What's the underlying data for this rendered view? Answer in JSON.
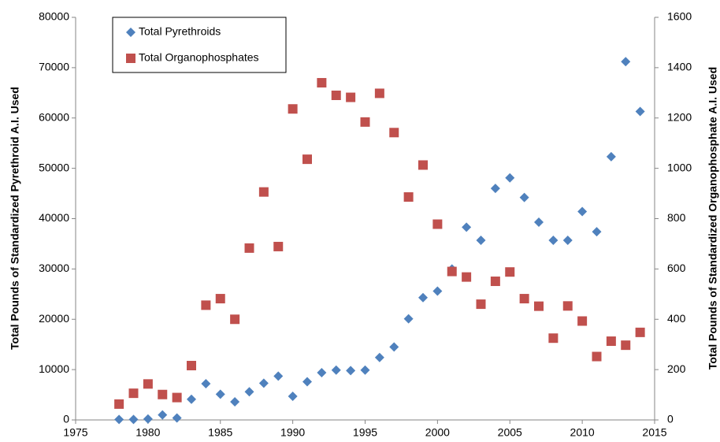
{
  "chart_data": {
    "type": "scatter",
    "y_axis_label": "Total Pounds of Standardized Pyrethroid A.I. Used",
    "y2_axis_label": "Total Pounds of Standardized Organophosphate A.I. Used",
    "x": [
      1978,
      1979,
      1980,
      1981,
      1982,
      1983,
      1984,
      1985,
      1986,
      1987,
      1988,
      1989,
      1990,
      1991,
      1992,
      1993,
      1994,
      1995,
      1996,
      1997,
      1998,
      1999,
      2000,
      2001,
      2002,
      2003,
      2004,
      2005,
      2006,
      2007,
      2008,
      2009,
      2010,
      2011,
      2012,
      2013,
      2014
    ],
    "series": [
      {
        "name": "Total Pyrethroids",
        "color": "#4f81bd",
        "marker": "diamond",
        "values": [
          100,
          100,
          200,
          1000,
          400,
          4100,
          7200,
          5100,
          3600,
          5600,
          7300,
          8700,
          4700,
          7600,
          9400,
          9900,
          9800,
          9900,
          12400,
          14500,
          20100,
          24300,
          25600,
          30000,
          38300,
          35700,
          46000,
          48100,
          44200,
          39300,
          35700,
          35700,
          41400,
          37400,
          52300,
          71200,
          61300
        ]
      },
      {
        "name": "Total Organophosphates",
        "color": "#c0504d",
        "marker": "square",
        "axis": "y2",
        "values": [
          63,
          106,
          143,
          101,
          89,
          216,
          456,
          482,
          400,
          683,
          906,
          689,
          1236,
          1036,
          1340,
          1290,
          1282,
          1184,
          1298,
          1142,
          886,
          1013,
          778,
          590,
          568,
          460,
          551,
          588,
          482,
          452,
          325,
          453,
          393,
          252,
          313,
          297,
          348
        ]
      }
    ],
    "xlim": [
      1975,
      2015
    ],
    "xticks": [
      1975,
      1980,
      1985,
      1990,
      1995,
      2000,
      2005,
      2010,
      2015
    ],
    "ylim": [
      0,
      80000
    ],
    "yticks": [
      0,
      10000,
      20000,
      30000,
      40000,
      50000,
      60000,
      70000,
      80000
    ],
    "y2lim": [
      0,
      1600
    ],
    "y2ticks": [
      0,
      200,
      400,
      600,
      800,
      1000,
      1200,
      1400,
      1600
    ],
    "grid": false,
    "legend": "upper left"
  }
}
